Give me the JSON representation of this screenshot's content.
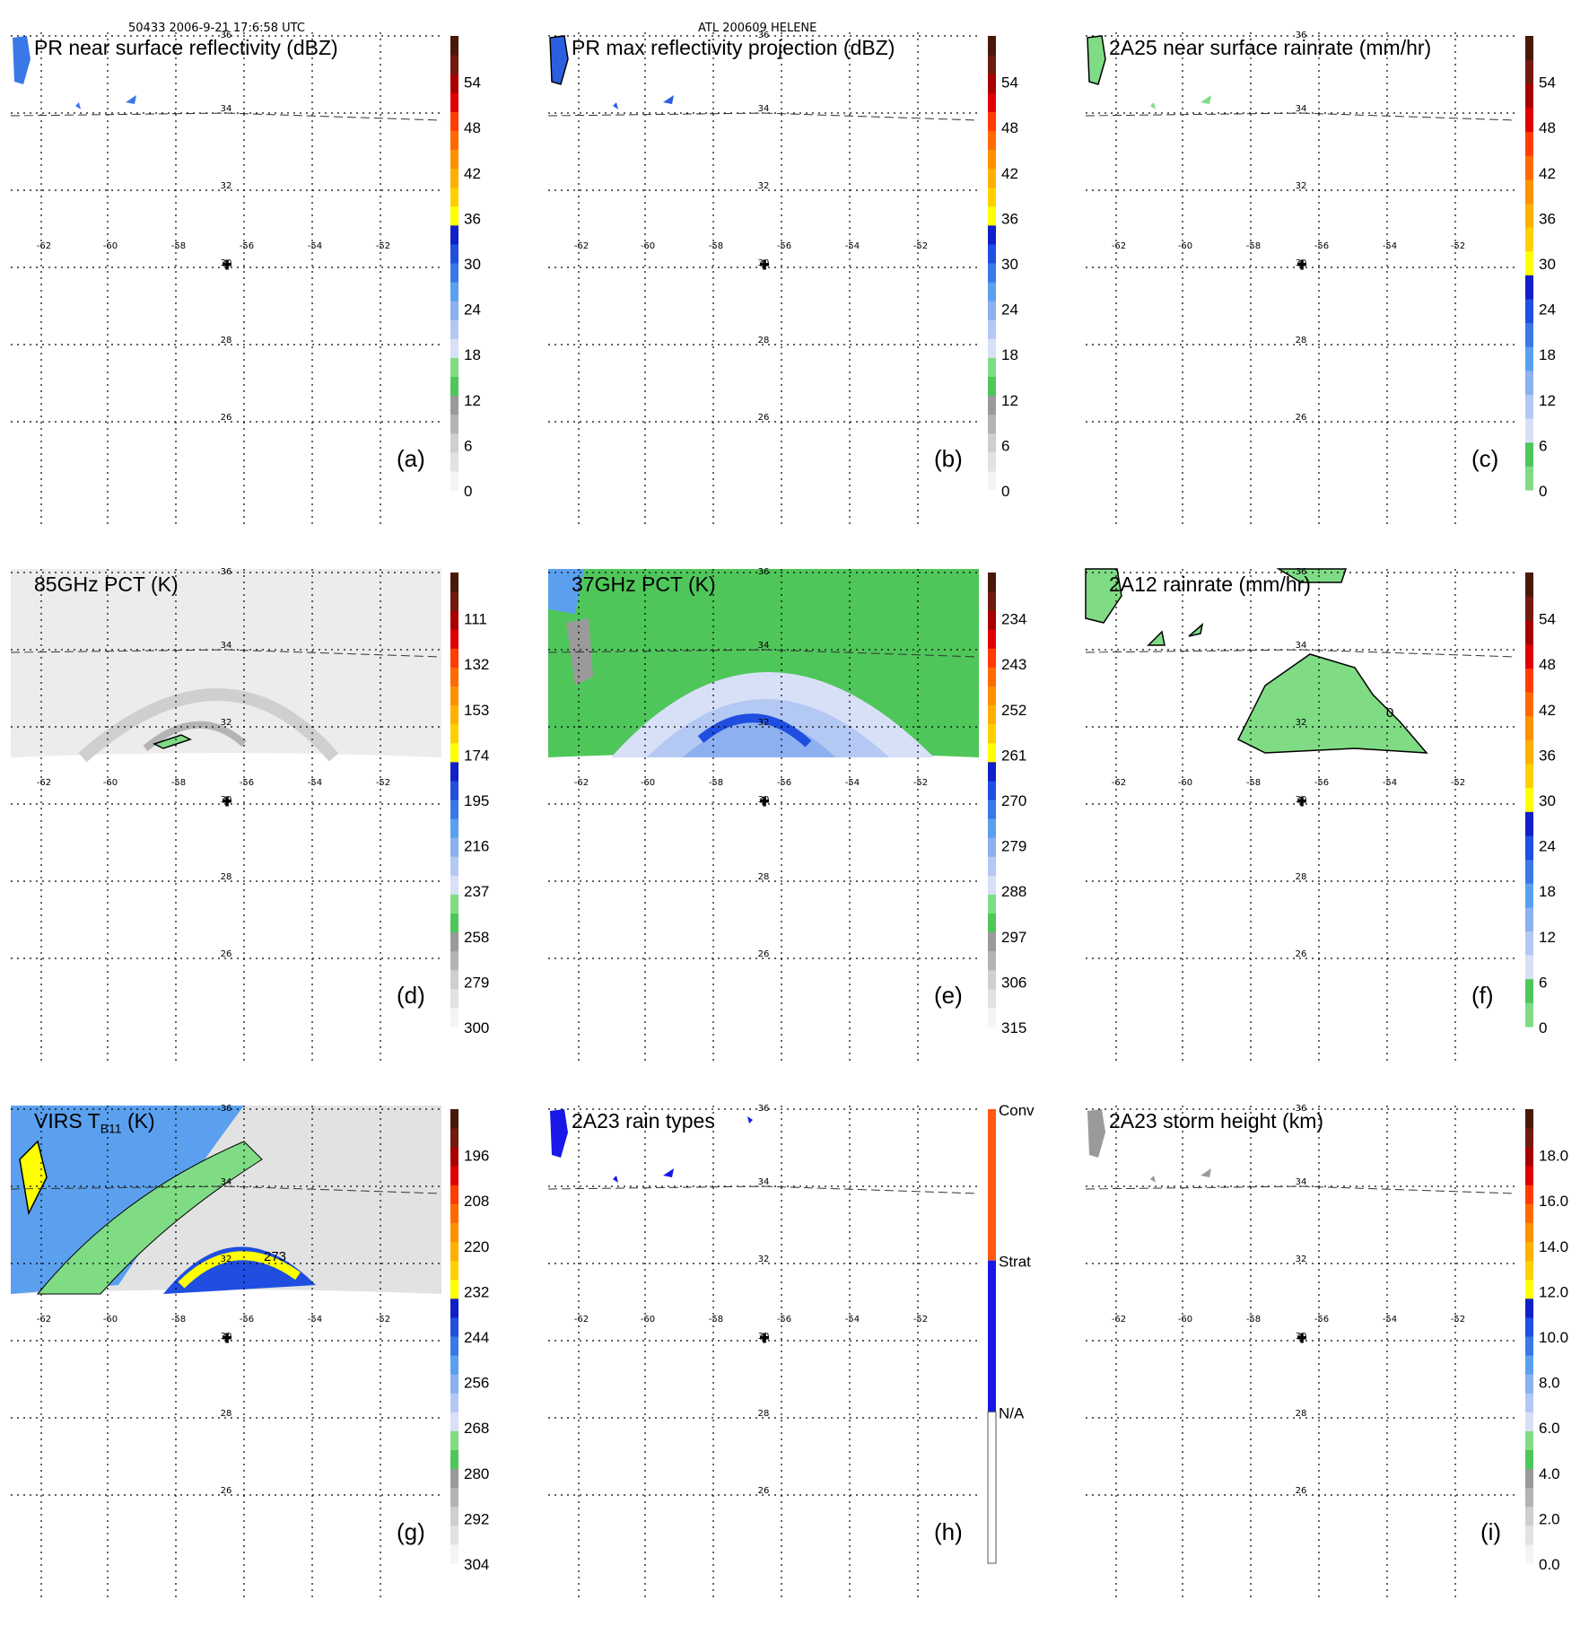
{
  "header": {
    "left": "50433 2006-9-21 17:6:58 UTC",
    "center": "ATL 200609 HELENE"
  },
  "map": {
    "lon_ticks": [
      "-62",
      "-60",
      "-58",
      "-56",
      "-54",
      "-52"
    ],
    "lat_ticks": [
      "36",
      "34",
      "32",
      "30",
      "28",
      "26"
    ],
    "center_marker": "cross-icon"
  },
  "palette": {
    "standard": [
      "#f4f4f4",
      "#e2e2e2",
      "#cfcfcf",
      "#b4b4b4",
      "#9a9a9a",
      "#4fc65a",
      "#7fdc85",
      "#d8e0f8",
      "#b4c8f4",
      "#8cb0f0",
      "#5aa0ee",
      "#3a78e8",
      "#1f4ee0",
      "#1020c8",
      "#ffff00",
      "#ffd000",
      "#ffb000",
      "#ff9000",
      "#ff6a00",
      "#ff3c00",
      "#e00000",
      "#a80000",
      "#701a10",
      "#4a1808"
    ],
    "rainrate": [
      "#7fdc85",
      "#4fc65a",
      "#d8e0f8",
      "#b4c8f4",
      "#8cb0f0",
      "#5aa0ee",
      "#3a78e8",
      "#1f4ee0",
      "#1020c8",
      "#ffff00",
      "#ffd000",
      "#ffb000",
      "#ff9000",
      "#ff6a00",
      "#ff3c00",
      "#e00000",
      "#a80000",
      "#701a10",
      "#4a1808"
    ],
    "raintype": [
      "#ffffff",
      "#1818e8",
      "#ff5a10"
    ]
  },
  "panels": [
    {
      "id": "a",
      "title": "PR near surface reflectivity (dBZ)",
      "label": "(a)",
      "ticks": [
        "0",
        "6",
        "12",
        "18",
        "24",
        "30",
        "36",
        "42",
        "48",
        "54"
      ],
      "palette": "standard"
    },
    {
      "id": "b",
      "title": "PR max reflectivity projection (dBZ)",
      "label": "(b)",
      "ticks": [
        "0",
        "6",
        "12",
        "18",
        "24",
        "30",
        "36",
        "42",
        "48",
        "54"
      ],
      "palette": "standard"
    },
    {
      "id": "c",
      "title": "2A25 near surface rainrate (mm/hr)",
      "label": "(c)",
      "ticks": [
        "0",
        "6",
        "12",
        "18",
        "24",
        "30",
        "36",
        "42",
        "48",
        "54"
      ],
      "palette": "rainrate"
    },
    {
      "id": "d",
      "title": "85GHz PCT (K)",
      "label": "(d)",
      "ticks": [
        "300",
        "279",
        "258",
        "237",
        "216",
        "195",
        "174",
        "153",
        "132",
        "111"
      ],
      "palette": "standard"
    },
    {
      "id": "e",
      "title": "37GHz PCT (K)",
      "label": "(e)",
      "ticks": [
        "315",
        "306",
        "297",
        "288",
        "279",
        "270",
        "261",
        "252",
        "243",
        "234"
      ],
      "palette": "standard"
    },
    {
      "id": "f",
      "title": "2A12 rainrate (mm/hr)",
      "label": "(f)",
      "ticks": [
        "0",
        "6",
        "12",
        "18",
        "24",
        "30",
        "36",
        "42",
        "48",
        "54"
      ],
      "palette": "rainrate",
      "contour_label": "0"
    },
    {
      "id": "g",
      "title_main": "VIRS T",
      "title_sub": "B11",
      "title_unit": " (K)",
      "label": "(g)",
      "ticks": [
        "304",
        "292",
        "280",
        "268",
        "256",
        "244",
        "232",
        "220",
        "208",
        "196"
      ],
      "palette": "standard",
      "contour_label": "273"
    },
    {
      "id": "h",
      "title": "2A23 rain types",
      "label": "(h)",
      "ticks": [
        "N/A",
        "Strat",
        "Conv"
      ],
      "palette": "raintype"
    },
    {
      "id": "i",
      "title": "2A23 storm height (km)",
      "label": "(i)",
      "ticks": [
        "0.0",
        "2.0",
        "4.0",
        "6.0",
        "8.0",
        "10.0",
        "12.0",
        "14.0",
        "16.0",
        "18.0"
      ],
      "palette": "standard"
    }
  ]
}
